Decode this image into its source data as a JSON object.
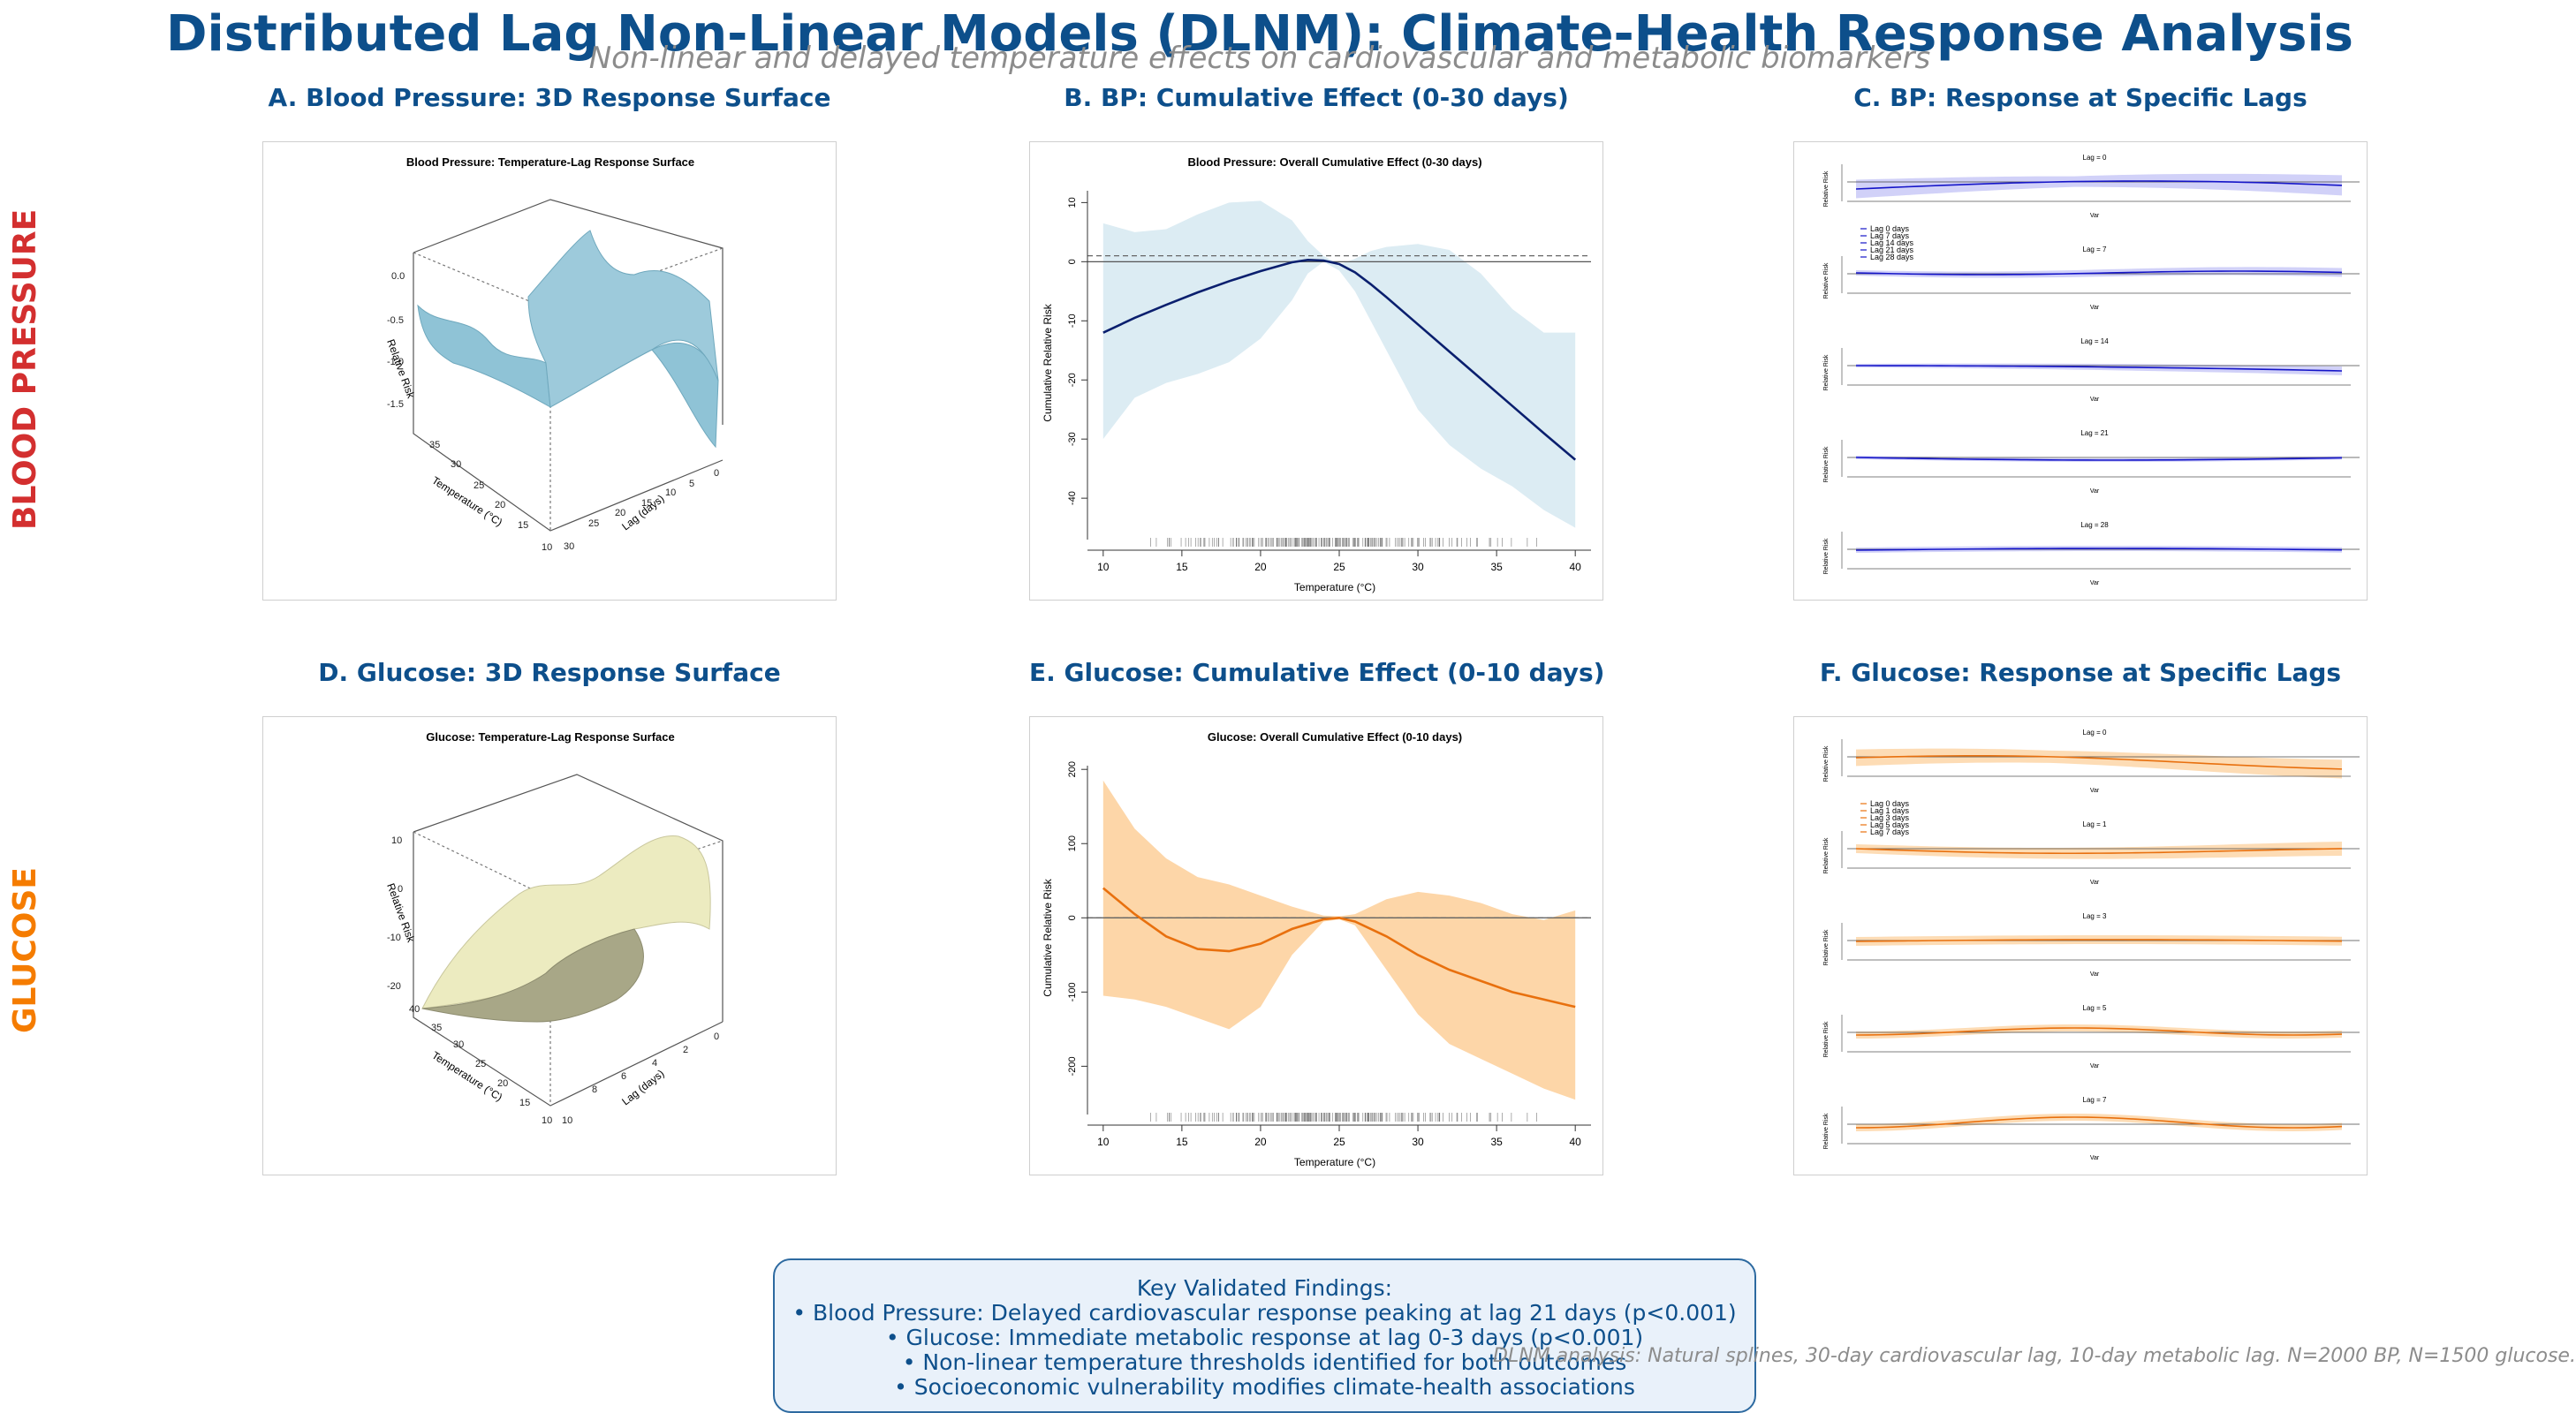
{
  "title": "Distributed Lag Non-Linear Models (DLNM): Climate-Health Response Analysis",
  "subtitle": "Non-linear and delayed temperature effects on cardiovascular and metabolic biomarkers",
  "row_labels": {
    "bp": "BLOOD PRESSURE",
    "glucose": "GLUCOSE"
  },
  "colors": {
    "title": "#0d4f8b",
    "bp_label": "#d32f2f",
    "glucose_label": "#f57c00",
    "bp_line": "#0a1f6e",
    "bp_band": "#dcecf3",
    "glu_line": "#e8700e",
    "glu_band": "#fdd6a8",
    "lag_line_bp": "#1414c8",
    "lag_band_bp": "#c9c9f7",
    "surface_bp": "#8fc3d6",
    "surface_glu": "#ecebc0"
  },
  "panels": {
    "A": {
      "title": "A. Blood Pressure: 3D Response Surface"
    },
    "B": {
      "title": "B. BP: Cumulative Effect (0-30 days)"
    },
    "C": {
      "title": "C. BP: Response at Specific Lags"
    },
    "D": {
      "title": "D. Glucose: 3D Response Surface"
    },
    "E": {
      "title": "E. Glucose: Cumulative Effect (0-10 days)"
    },
    "F": {
      "title": "F. Glucose: Response at Specific Lags"
    }
  },
  "findings": {
    "heading": "Key Validated Findings:",
    "items": [
      "• Blood Pressure: Delayed cardiovascular response peaking at lag 21 days (p<0.001)",
      "• Glucose: Immediate metabolic response at lag 0-3 days (p<0.001)",
      "• Non-linear temperature thresholds identified for both outcomes",
      "• Socioeconomic vulnerability modifies climate-health associations"
    ]
  },
  "footnote": "DLNM analysis: Natural splines, 30-day cardiovascular lag, 10-day metabolic lag. N=2000 BP, N=1500 glucose.",
  "chart_data": [
    {
      "id": "A",
      "type": "surface",
      "title": "Blood Pressure: Temperature-Lag Response Surface",
      "xlabel": "Temperature (°C)",
      "ylabel": "Lag (days)",
      "zlabel": "Relative Risk",
      "x_ticks": [
        "10",
        "15",
        "20",
        "25",
        "30",
        "35"
      ],
      "y_ticks": [
        "0",
        "5",
        "10",
        "15",
        "20",
        "25",
        "30"
      ],
      "z_ticks": [
        "0.0",
        "-0.5",
        "-1.0",
        "-1.5"
      ]
    },
    {
      "id": "B",
      "type": "line",
      "title": "Blood Pressure: Overall Cumulative Effect (0-30 days)",
      "xlabel": "Temperature (°C)",
      "ylabel": "Cumulative Relative Risk",
      "xlim": [
        9,
        41
      ],
      "ylim": [
        -47,
        12
      ],
      "x_ticks": [
        10,
        15,
        20,
        25,
        30,
        35,
        40
      ],
      "y_ticks": [
        10,
        0,
        -10,
        -20,
        -30,
        -40
      ],
      "reference_line": 1,
      "x": [
        10,
        12,
        14,
        16,
        18,
        20,
        22,
        23,
        24,
        25,
        26,
        27,
        28,
        30,
        32,
        34,
        36,
        38,
        40
      ],
      "y": [
        -12,
        -9.5,
        -7.3,
        -5.2,
        -3.3,
        -1.6,
        -0.1,
        0.3,
        0.2,
        -0.4,
        -1.8,
        -3.8,
        -6.0,
        -10.6,
        -15.2,
        -19.8,
        -24.4,
        -29.0,
        -33.5
      ],
      "lower": [
        -30,
        -23,
        -20.5,
        -19,
        -17,
        -13,
        -6.5,
        -2,
        0,
        -1.5,
        -5,
        -10,
        -15,
        -25,
        -31,
        -35,
        -38,
        -42,
        -45
      ],
      "upper": [
        6.5,
        5,
        5.5,
        8,
        10,
        10.3,
        7,
        3.5,
        1,
        -0.5,
        0.5,
        1.8,
        2.5,
        3,
        2,
        -2,
        -8,
        -12,
        -12
      ]
    },
    {
      "id": "C",
      "type": "line",
      "subplots": [
        "Lag = 0",
        "Lag = 7",
        "Lag = 14",
        "Lag = 21",
        "Lag = 28"
      ],
      "xlabel": "Var",
      "ylabel": "Relative Risk",
      "legend": [
        "Lag 0 days",
        "Lag 7 days",
        "Lag 14 days",
        "Lag 21 days",
        "Lag 28 days"
      ]
    },
    {
      "id": "D",
      "type": "surface",
      "title": "Glucose: Temperature-Lag Response Surface",
      "xlabel": "Temperature (°C)",
      "ylabel": "Lag (days)",
      "zlabel": "Relative Risk",
      "x_ticks": [
        "10",
        "15",
        "20",
        "25",
        "30",
        "35",
        "40"
      ],
      "y_ticks": [
        "0",
        "2",
        "4",
        "6",
        "8",
        "10"
      ],
      "z_ticks": [
        "10",
        "0",
        "-10",
        "-20"
      ]
    },
    {
      "id": "E",
      "type": "line",
      "title": "Glucose: Overall Cumulative Effect (0-10 days)",
      "xlabel": "Temperature (°C)",
      "ylabel": "Cumulative Relative Risk",
      "xlim": [
        9,
        41
      ],
      "ylim": [
        -265,
        205
      ],
      "x_ticks": [
        10,
        15,
        20,
        25,
        30,
        35,
        40
      ],
      "y_ticks": [
        200,
        100,
        0,
        -100,
        -200
      ],
      "reference_line": 0,
      "x": [
        10,
        12,
        14,
        16,
        18,
        20,
        22,
        24,
        25,
        26,
        28,
        30,
        32,
        34,
        36,
        38,
        40
      ],
      "y": [
        40,
        5,
        -25,
        -42,
        -45,
        -35,
        -15,
        -2,
        0,
        -5,
        -25,
        -50,
        -70,
        -85,
        -100,
        -110,
        -120
      ],
      "lower": [
        -105,
        -110,
        -120,
        -135,
        -150,
        -120,
        -50,
        -5,
        -2,
        -10,
        -70,
        -130,
        -170,
        -190,
        -210,
        -230,
        -245
      ],
      "upper": [
        185,
        120,
        80,
        55,
        45,
        30,
        15,
        3,
        2,
        5,
        25,
        35,
        30,
        20,
        5,
        -3,
        10
      ]
    },
    {
      "id": "F",
      "type": "line",
      "subplots": [
        "Lag = 0",
        "Lag = 1",
        "Lag = 3",
        "Lag = 5",
        "Lag = 7"
      ],
      "xlabel": "Var",
      "ylabel": "Relative Risk",
      "legend": [
        "Lag 0 days",
        "Lag 1 days",
        "Lag 3 days",
        "Lag 5 days",
        "Lag 7 days"
      ]
    }
  ]
}
